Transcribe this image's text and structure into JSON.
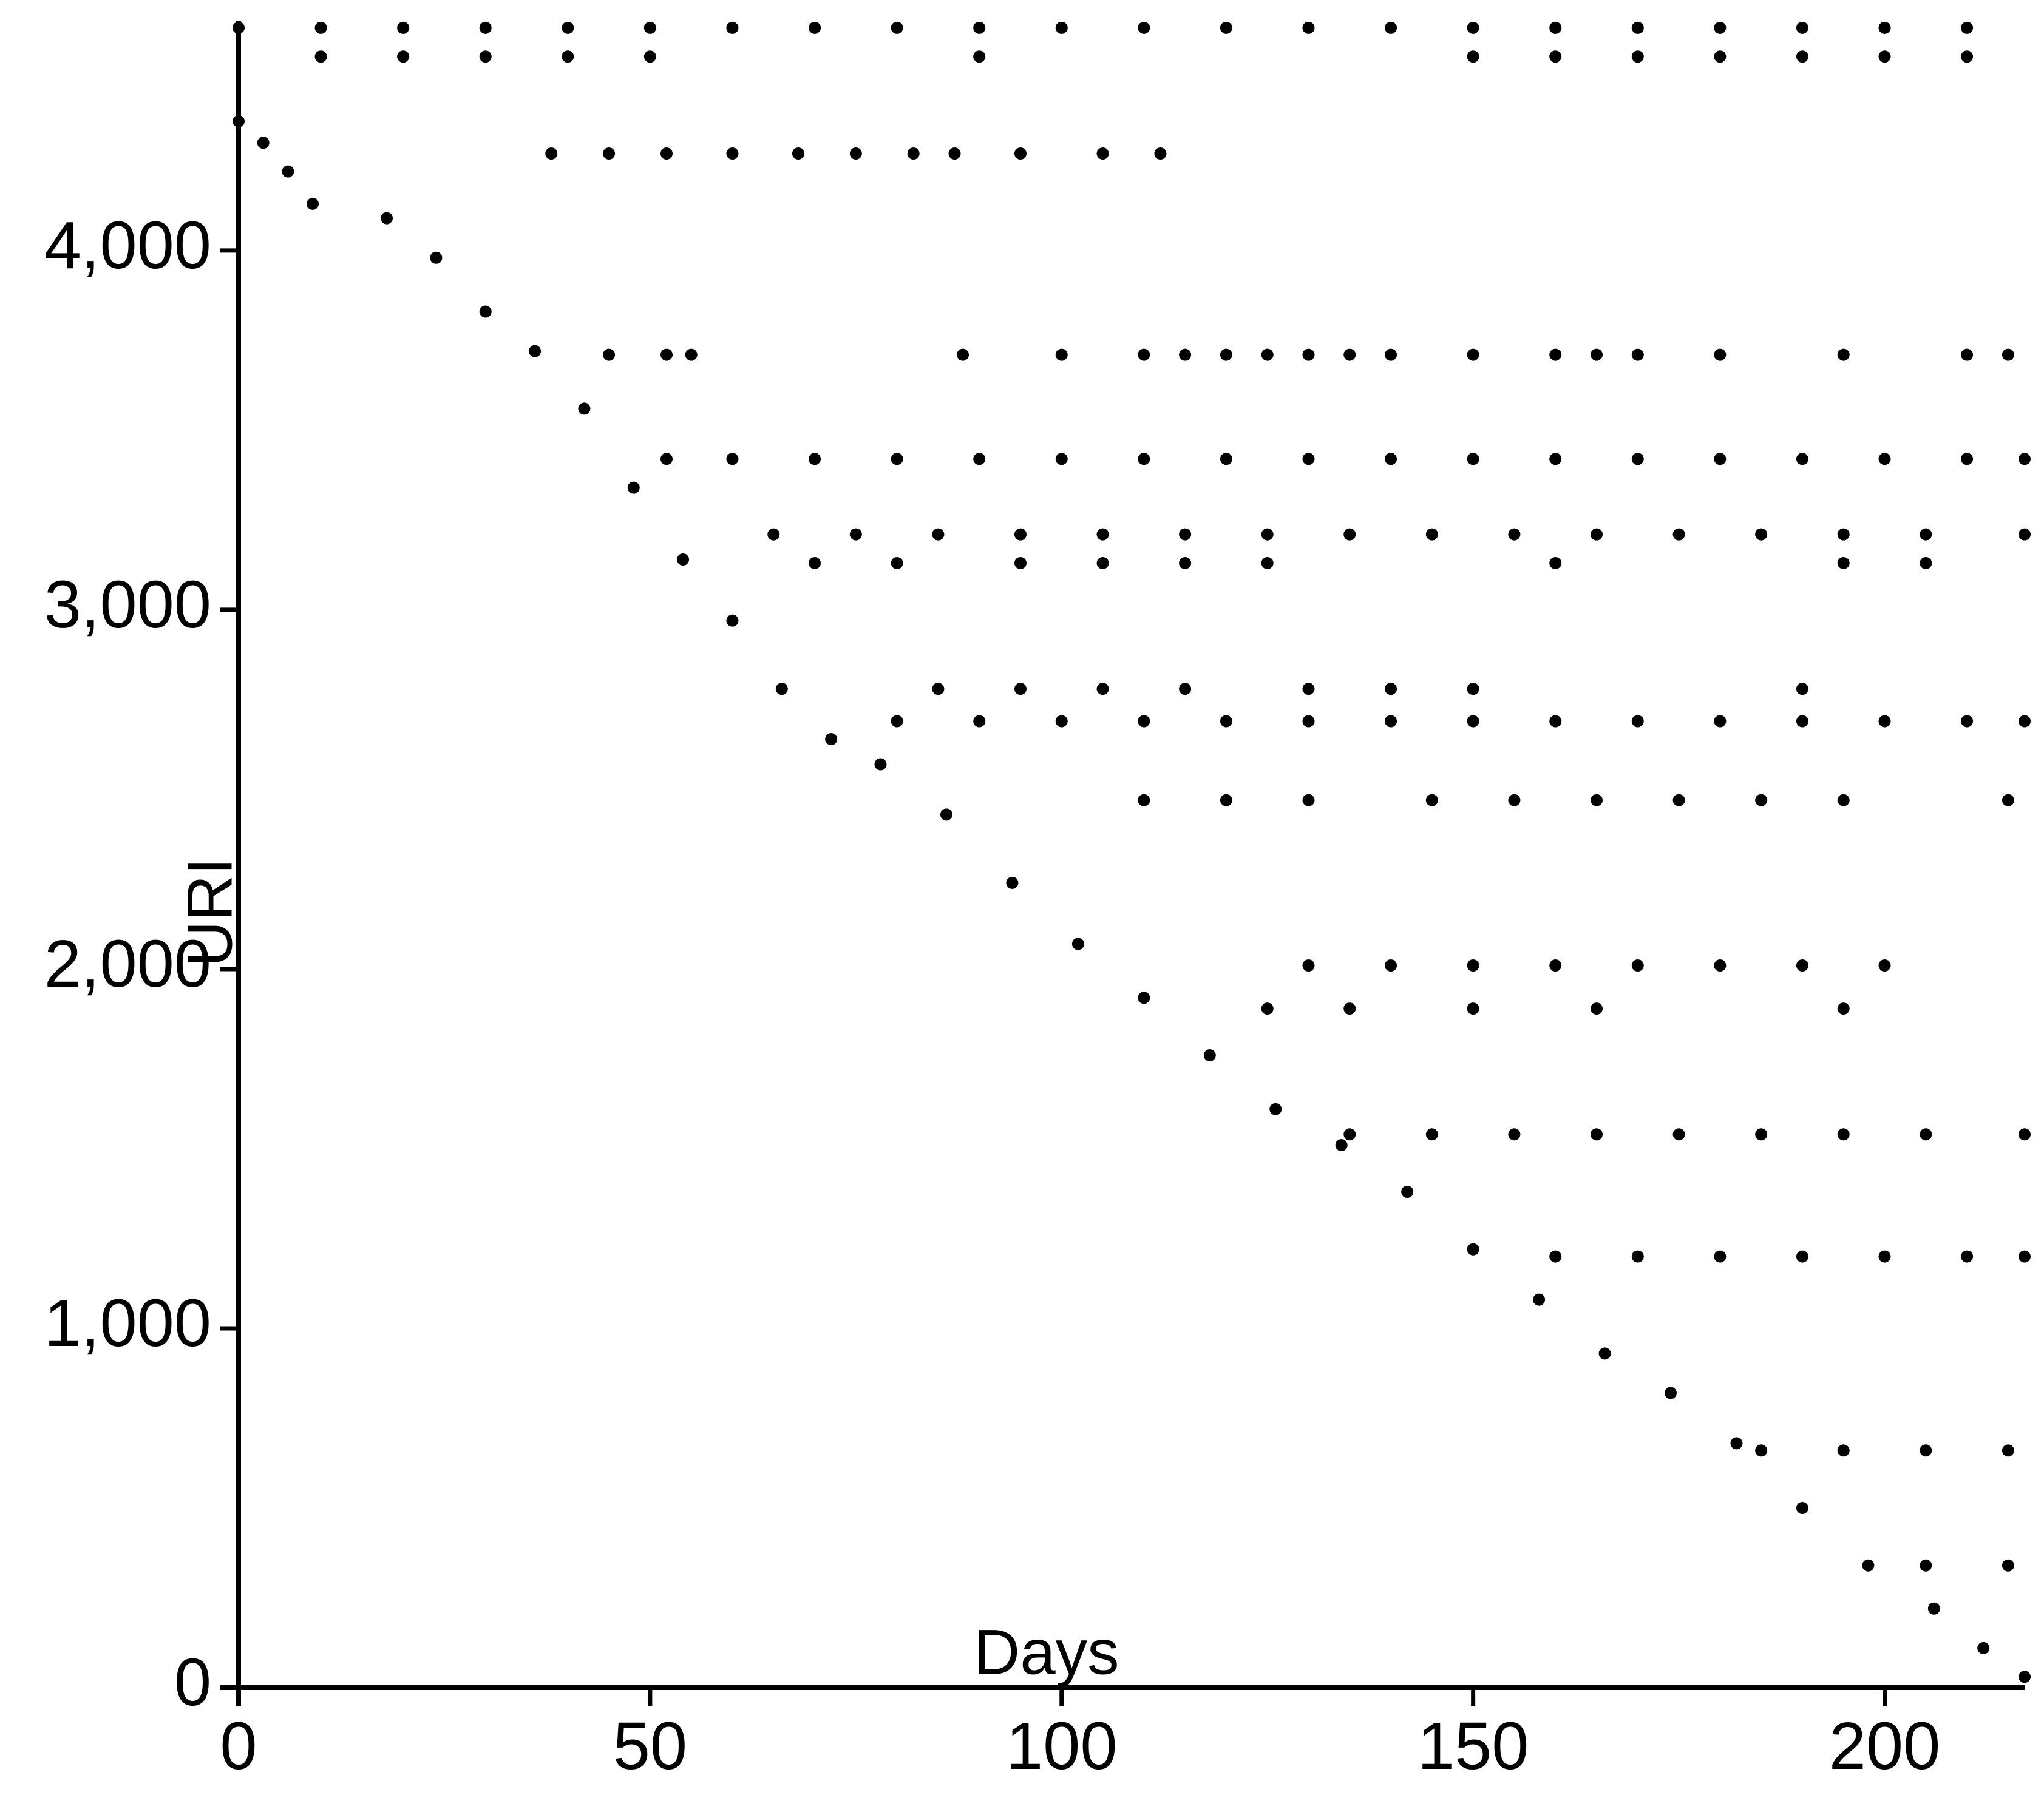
{
  "chart_data": {
    "type": "scatter",
    "x_label": "Days",
    "y_label": "URI",
    "color": "#000000",
    "xlim": [
      0,
      217
    ],
    "ylim": [
      0,
      4640
    ],
    "xticks": [
      0,
      50,
      100,
      150,
      200
    ],
    "yticks": [
      0,
      {
        "value": 1000,
        "label": "1,000"
      },
      {
        "value": 2000,
        "label": "2,000"
      },
      {
        "value": 3000,
        "label": "3,000"
      },
      {
        "value": 4000,
        "label": "4,000"
      }
    ],
    "x": [
      0,
      3,
      6,
      9,
      18,
      24,
      30,
      36,
      42,
      48,
      54,
      60,
      66,
      72,
      78,
      86,
      94,
      102,
      110,
      118,
      126,
      134,
      142,
      150,
      158,
      166,
      174,
      182,
      190,
      198,
      206,
      212,
      217,
      0,
      10,
      20,
      30,
      40,
      50,
      60,
      70,
      80,
      90,
      100,
      110,
      120,
      130,
      140,
      150,
      160,
      170,
      180,
      190,
      200,
      210,
      10,
      20,
      30,
      40,
      50,
      90,
      150,
      160,
      170,
      180,
      190,
      200,
      210,
      38,
      45,
      52,
      60,
      68,
      75,
      82,
      87,
      95,
      105,
      112,
      45,
      52,
      55,
      88,
      100,
      110,
      115,
      120,
      125,
      130,
      135,
      140,
      150,
      160,
      165,
      170,
      180,
      195,
      210,
      215,
      52,
      60,
      70,
      80,
      90,
      100,
      110,
      120,
      130,
      140,
      150,
      160,
      170,
      180,
      190,
      200,
      210,
      217,
      65,
      75,
      85,
      95,
      105,
      115,
      125,
      135,
      145,
      155,
      165,
      175,
      185,
      195,
      205,
      217,
      70,
      80,
      95,
      105,
      115,
      125,
      160,
      195,
      205,
      85,
      95,
      105,
      115,
      130,
      140,
      150,
      190,
      80,
      90,
      100,
      110,
      120,
      130,
      140,
      150,
      160,
      170,
      180,
      190,
      200,
      210,
      217,
      110,
      120,
      130,
      145,
      155,
      165,
      175,
      185,
      195,
      215,
      130,
      140,
      150,
      160,
      170,
      180,
      190,
      200,
      125,
      135,
      150,
      165,
      195,
      135,
      145,
      155,
      165,
      175,
      185,
      195,
      205,
      217,
      160,
      170,
      180,
      190,
      200,
      210,
      217,
      185,
      195,
      205,
      215,
      205,
      215
    ],
    "values": [
      4360,
      4300,
      4220,
      4130,
      4090,
      3980,
      3830,
      3720,
      3560,
      3340,
      3140,
      2970,
      2780,
      2640,
      2570,
      2430,
      2240,
      2070,
      1920,
      1760,
      1610,
      1510,
      1380,
      1220,
      1080,
      930,
      820,
      680,
      500,
      340,
      220,
      110,
      30,
      4620,
      4620,
      4620,
      4620,
      4620,
      4620,
      4620,
      4620,
      4620,
      4620,
      4620,
      4620,
      4620,
      4620,
      4620,
      4620,
      4620,
      4620,
      4620,
      4620,
      4620,
      4620,
      4540,
      4540,
      4540,
      4540,
      4540,
      4540,
      4540,
      4540,
      4540,
      4540,
      4540,
      4540,
      4540,
      4270,
      4270,
      4270,
      4270,
      4270,
      4270,
      4270,
      4270,
      4270,
      4270,
      4270,
      3710,
      3710,
      3710,
      3710,
      3710,
      3710,
      3710,
      3710,
      3710,
      3710,
      3710,
      3710,
      3710,
      3710,
      3710,
      3710,
      3710,
      3710,
      3710,
      3710,
      3420,
      3420,
      3420,
      3420,
      3420,
      3420,
      3420,
      3420,
      3420,
      3420,
      3420,
      3420,
      3420,
      3420,
      3420,
      3420,
      3420,
      3420,
      3210,
      3210,
      3210,
      3210,
      3210,
      3210,
      3210,
      3210,
      3210,
      3210,
      3210,
      3210,
      3210,
      3210,
      3210,
      3210,
      3130,
      3130,
      3130,
      3130,
      3130,
      3130,
      3130,
      3130,
      3130,
      2780,
      2780,
      2780,
      2780,
      2780,
      2780,
      2780,
      2780,
      2690,
      2690,
      2690,
      2690,
      2690,
      2690,
      2690,
      2690,
      2690,
      2690,
      2690,
      2690,
      2690,
      2690,
      2690,
      2470,
      2470,
      2470,
      2470,
      2470,
      2470,
      2470,
      2470,
      2470,
      2470,
      2010,
      2010,
      2010,
      2010,
      2010,
      2010,
      2010,
      2010,
      1890,
      1890,
      1890,
      1890,
      1890,
      1540,
      1540,
      1540,
      1540,
      1540,
      1540,
      1540,
      1540,
      1540,
      1200,
      1200,
      1200,
      1200,
      1200,
      1200,
      1200,
      660,
      660,
      660,
      660,
      340,
      340
    ]
  }
}
